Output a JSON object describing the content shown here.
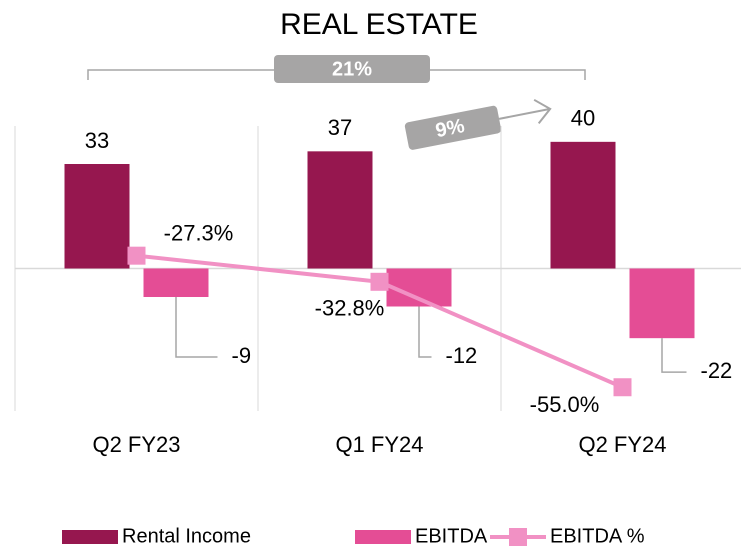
{
  "chart_data": {
    "type": "bar",
    "title": "REAL ESTATE",
    "categories": [
      "Q2 FY23",
      "Q1 FY24",
      "Q2 FY24"
    ],
    "series": [
      {
        "name": "Rental Income",
        "color": "#96174f",
        "values": [
          33,
          37,
          40
        ]
      },
      {
        "name": "EBITDA",
        "color": "#e44d95",
        "values": [
          -9,
          -12,
          -22
        ]
      },
      {
        "name": "EBITDA %",
        "type": "line",
        "axis": "y2",
        "color": "#f191c4",
        "values": [
          -27.3,
          -32.8,
          -55.0
        ],
        "value_labels": [
          "-27.3%",
          "-32.8%",
          "-55.0%"
        ]
      }
    ],
    "annotations": [
      "21%",
      "9%"
    ],
    "ylim": [
      -45,
      45
    ],
    "y2lim": [
      -60,
      0
    ],
    "legend": "bottom"
  }
}
